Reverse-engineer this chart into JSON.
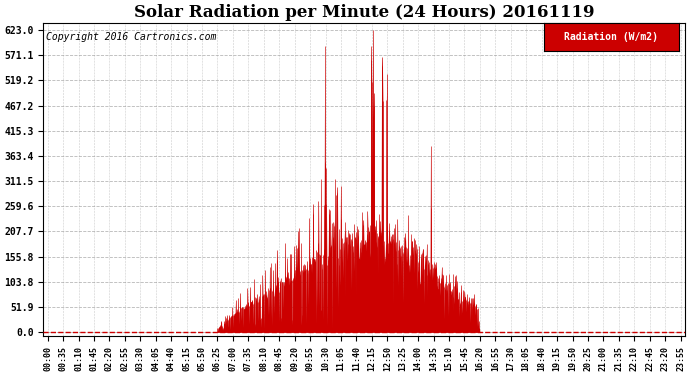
{
  "title": "Solar Radiation per Minute (24 Hours) 20161119",
  "copyright_text": "Copyright 2016 Cartronics.com",
  "legend_label": "Radiation (W/m2)",
  "ytick_values": [
    0.0,
    51.9,
    103.8,
    155.8,
    207.7,
    259.6,
    311.5,
    363.4,
    415.3,
    467.2,
    519.2,
    571.1,
    623.0
  ],
  "ymax": 623.0,
  "ymin": 0.0,
  "bar_color": "#cc0000",
  "background_color": "#ffffff",
  "grid_color": "#999999",
  "title_fontsize": 12,
  "copyright_fontsize": 7,
  "legend_bg_color": "#cc0000",
  "legend_text_color": "#ffffff",
  "tick_step_minutes": 35
}
